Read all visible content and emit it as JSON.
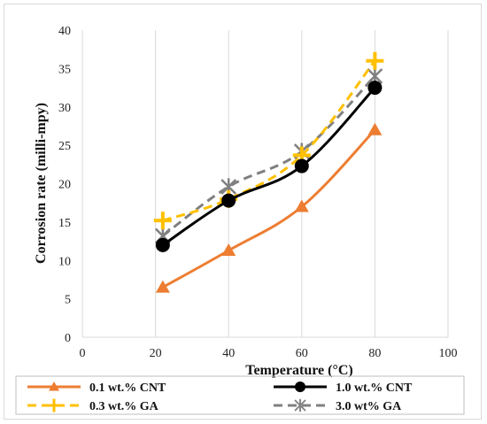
{
  "chart_data": {
    "type": "line",
    "xlabel": "Temperature (°C)",
    "ylabel": "Corrosion rate (milli-mpy)",
    "xlim": [
      0,
      100
    ],
    "ylim": [
      0,
      40
    ],
    "xticks": [
      0,
      20,
      40,
      60,
      80,
      100
    ],
    "yticks": [
      0,
      5,
      10,
      15,
      20,
      25,
      30,
      35,
      40
    ],
    "grid": "vertical gridlines",
    "legend_position": "bottom",
    "series": [
      {
        "name": "0.1 wt.% CNT",
        "x": [
          22,
          40,
          60,
          80
        ],
        "y": [
          6.5,
          11.3,
          17,
          27
        ],
        "color": "#ed7d31",
        "marker": "triangle",
        "dash": "solid"
      },
      {
        "name": "0.3 wt.% GA",
        "x": [
          22,
          40,
          60,
          80
        ],
        "y": [
          15.2,
          18,
          23.7,
          36
        ],
        "color": "#ffc000",
        "marker": "plus",
        "dash": "dashed"
      },
      {
        "name": "1.0 wt.% CNT",
        "x": [
          22,
          40,
          60,
          80
        ],
        "y": [
          12,
          17.8,
          22.3,
          32.5
        ],
        "color": "#000000",
        "marker": "circle",
        "dash": "solid"
      },
      {
        "name": "3.0 wt% GA",
        "x": [
          22,
          40,
          60,
          80
        ],
        "y": [
          13.2,
          19.6,
          24.2,
          34
        ],
        "color": "#808080",
        "marker": "star",
        "dash": "dashed"
      }
    ]
  }
}
